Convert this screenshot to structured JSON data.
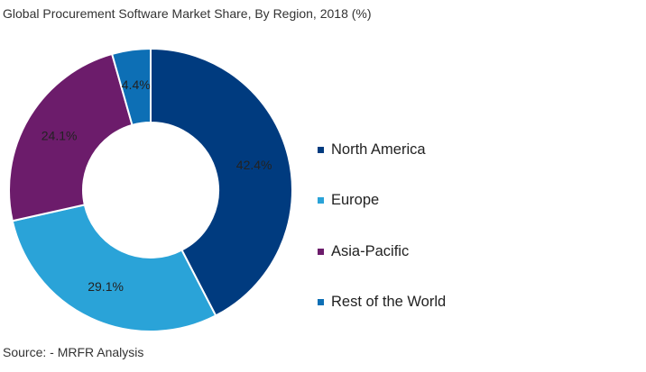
{
  "chart_data": {
    "type": "pie",
    "variant": "donut",
    "title": "Global Procurement Software Market Share, By Region, 2018 (%)",
    "source": "Source: - MRFR Analysis",
    "categories": [
      "North America",
      "Europe",
      "Asia-Pacific",
      "Rest of the World"
    ],
    "values": [
      42.4,
      29.1,
      24.1,
      4.4
    ],
    "labels": [
      "42.4%",
      "29.1%",
      "24.1%",
      "4.4%"
    ],
    "colors": [
      "#003b7f",
      "#2aa3d8",
      "#6c1c6b",
      "#0d6fb5"
    ],
    "legend_position": "right"
  }
}
